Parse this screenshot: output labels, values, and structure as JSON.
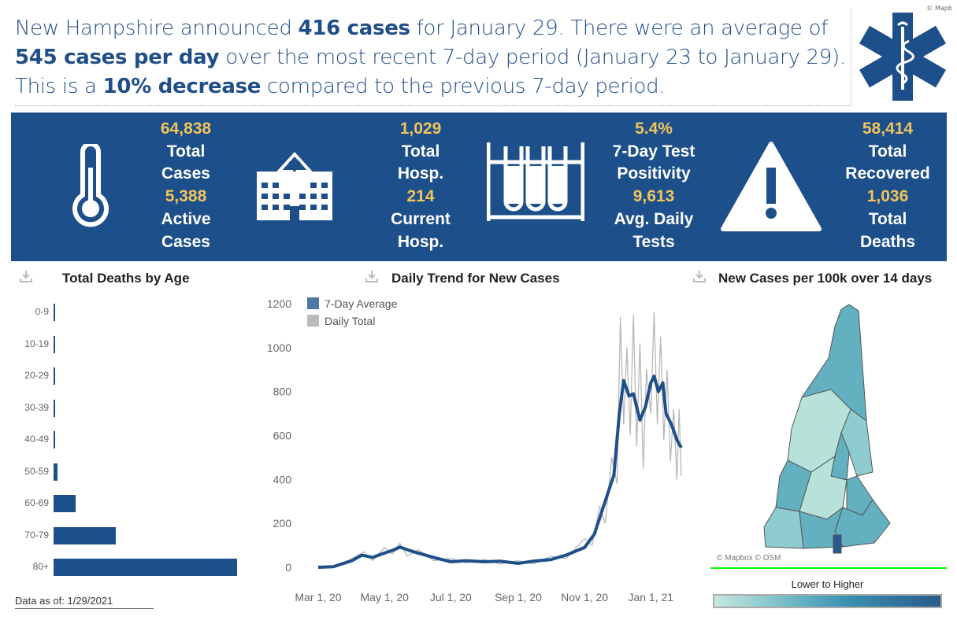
{
  "headline": {
    "p1": "New Hampshire announced ",
    "cases_today": "416 cases",
    "p2": " for January 29. There were an average of ",
    "avg": "545 cases per day",
    "p3": " over the most recent 7-day period (January 23 to January 29). This is a ",
    "change": "10% decrease",
    "p4": " compared to the previous 7-day period."
  },
  "logo_credit": "© Mapb",
  "logo_icon": "star-of-life-icon",
  "stats": [
    {
      "icon": "thermometer-icon",
      "v1": "64,838",
      "l1a": "Total",
      "l1b": "Cases",
      "v2": "5,388",
      "l2a": "Active",
      "l2b": "Cases"
    },
    {
      "icon": "hospital-icon",
      "v1": "1,029",
      "l1a": "Total",
      "l1b": "Hosp.",
      "v2": "214",
      "l2a": "Current",
      "l2b": "Hosp."
    },
    {
      "icon": "test-tubes-icon",
      "v1": "5.4%",
      "l1a": "7-Day Test",
      "l1b": "Positivity",
      "v2": "9,613",
      "l2a": "Avg. Daily",
      "l2b": "Tests"
    },
    {
      "icon": "warning-icon",
      "v1": "58,414",
      "l1a": "Total",
      "l1b": "Recovered",
      "v2": "1,036",
      "l2a": "Total",
      "l2b": "Deaths"
    }
  ],
  "colors": {
    "banner": "#1d4f8b",
    "highlight": "#f2c45a",
    "avg_line": "#1d4f8b",
    "daily_line": "#b8b8b8"
  },
  "deaths_by_age": {
    "title": "Total Deaths by Age",
    "categories": [
      "0-9",
      "10-19",
      "20-29",
      "30-39",
      "40-49",
      "50-59",
      "60-69",
      "70-79",
      "80+"
    ],
    "values": [
      0,
      1,
      1,
      2,
      6,
      15,
      83,
      233,
      688
    ]
  },
  "data_asof": "Data as of: 1/29/2021",
  "chart_data": {
    "type": "line",
    "title": "Daily Trend for New Cases",
    "ylim": [
      0,
      1200
    ],
    "yticks": [
      "0",
      "200",
      "400",
      "600",
      "800",
      "1000",
      "1200"
    ],
    "xticks": [
      "Mar 1, 20",
      "May 1, 20",
      "Jul 1, 20",
      "Sep 1, 20",
      "Nov 1, 20",
      "Jan 1, 21"
    ],
    "xtick_dates": [
      "2020-03-01",
      "2020-05-01",
      "2020-07-01",
      "2020-09-01",
      "2020-11-01",
      "2021-01-01"
    ],
    "series": [
      {
        "name": "7-Day Average",
        "points": [
          [
            "2020-03-01",
            0
          ],
          [
            "2020-03-15",
            3
          ],
          [
            "2020-04-01",
            30
          ],
          [
            "2020-04-10",
            55
          ],
          [
            "2020-04-20",
            45
          ],
          [
            "2020-05-01",
            65
          ],
          [
            "2020-05-10",
            80
          ],
          [
            "2020-05-15",
            92
          ],
          [
            "2020-05-25",
            75
          ],
          [
            "2020-06-01",
            65
          ],
          [
            "2020-06-15",
            45
          ],
          [
            "2020-07-01",
            25
          ],
          [
            "2020-07-15",
            30
          ],
          [
            "2020-08-01",
            25
          ],
          [
            "2020-08-15",
            28
          ],
          [
            "2020-09-01",
            18
          ],
          [
            "2020-09-15",
            28
          ],
          [
            "2020-10-01",
            35
          ],
          [
            "2020-10-15",
            55
          ],
          [
            "2020-11-01",
            90
          ],
          [
            "2020-11-10",
            150
          ],
          [
            "2020-11-20",
            300
          ],
          [
            "2020-11-28",
            420
          ],
          [
            "2020-12-03",
            700
          ],
          [
            "2020-12-07",
            850
          ],
          [
            "2020-12-12",
            780
          ],
          [
            "2020-12-16",
            790
          ],
          [
            "2020-12-22",
            670
          ],
          [
            "2020-12-27",
            730
          ],
          [
            "2021-01-01",
            840
          ],
          [
            "2021-01-04",
            870
          ],
          [
            "2021-01-08",
            800
          ],
          [
            "2021-01-12",
            840
          ],
          [
            "2021-01-15",
            700
          ],
          [
            "2021-01-20",
            650
          ],
          [
            "2021-01-25",
            580
          ],
          [
            "2021-01-29",
            545
          ]
        ]
      },
      {
        "name": "Daily Total",
        "points": [
          [
            "2020-03-01",
            0
          ],
          [
            "2020-03-20",
            10
          ],
          [
            "2020-04-05",
            50
          ],
          [
            "2020-04-12",
            70
          ],
          [
            "2020-04-20",
            30
          ],
          [
            "2020-05-01",
            90
          ],
          [
            "2020-05-08",
            60
          ],
          [
            "2020-05-15",
            110
          ],
          [
            "2020-05-22",
            50
          ],
          [
            "2020-06-01",
            80
          ],
          [
            "2020-06-15",
            30
          ],
          [
            "2020-07-01",
            40
          ],
          [
            "2020-07-15",
            20
          ],
          [
            "2020-08-01",
            35
          ],
          [
            "2020-08-15",
            15
          ],
          [
            "2020-09-01",
            30
          ],
          [
            "2020-09-15",
            15
          ],
          [
            "2020-10-01",
            50
          ],
          [
            "2020-10-15",
            40
          ],
          [
            "2020-11-01",
            130
          ],
          [
            "2020-11-08",
            100
          ],
          [
            "2020-11-15",
            280
          ],
          [
            "2020-11-20",
            200
          ],
          [
            "2020-11-26",
            500
          ],
          [
            "2020-12-01",
            380
          ],
          [
            "2020-12-04",
            1140
          ],
          [
            "2020-12-07",
            650
          ],
          [
            "2020-12-10",
            1000
          ],
          [
            "2020-12-13",
            600
          ],
          [
            "2020-12-16",
            1150
          ],
          [
            "2020-12-19",
            550
          ],
          [
            "2020-12-22",
            1020
          ],
          [
            "2020-12-25",
            450
          ],
          [
            "2020-12-28",
            900
          ],
          [
            "2021-01-01",
            700
          ],
          [
            "2021-01-04",
            1160
          ],
          [
            "2021-01-07",
            650
          ],
          [
            "2021-01-10",
            1050
          ],
          [
            "2021-01-13",
            580
          ],
          [
            "2021-01-16",
            900
          ],
          [
            "2021-01-19",
            480
          ],
          [
            "2021-01-22",
            720
          ],
          [
            "2021-01-25",
            400
          ],
          [
            "2021-01-27",
            720
          ],
          [
            "2021-01-29",
            416
          ]
        ]
      }
    ],
    "legend": "top-left",
    "grid": false
  },
  "map": {
    "title": "New Cases per 100k over 14 days",
    "credit": "© Mapbox © OSM",
    "legend_label": "Lower to Higher"
  }
}
